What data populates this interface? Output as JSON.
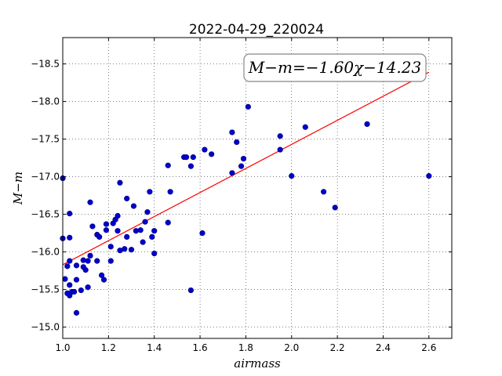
{
  "chart_data": {
    "type": "scatter",
    "title": "2022-04-29_220024",
    "xlabel": "airmass",
    "ylabel": "M−m",
    "xlim": [
      1.0,
      2.7
    ],
    "ylim": [
      -18.85,
      -14.85
    ],
    "y_inverted": true,
    "grid": true,
    "x_ticks": [
      1.0,
      1.2,
      1.4,
      1.6,
      1.8,
      2.0,
      2.2,
      2.4,
      2.6
    ],
    "x_tick_labels": [
      "1.0",
      "1.2",
      "1.4",
      "1.6",
      "1.8",
      "2.0",
      "2.2",
      "2.4",
      "2.6"
    ],
    "y_ticks": [
      -15.0,
      -15.5,
      -16.0,
      -16.5,
      -17.0,
      -17.5,
      -18.0,
      -18.5
    ],
    "y_tick_labels": [
      "−15.0",
      "−15.5",
      "−16.0",
      "−16.5",
      "−17.0",
      "−17.5",
      "−18.0",
      "−18.5"
    ],
    "annotation": "M−m=−1.60χ−14.23",
    "annotation_position": "top-right",
    "point_color": "#0000cc",
    "fit_color": "#ff0000",
    "fit": {
      "slope": -1.6,
      "intercept": -14.23,
      "x": [
        1.0,
        2.6
      ]
    },
    "points": [
      {
        "x": 1.0,
        "y": -16.18
      },
      {
        "x": 1.0,
        "y": -16.98
      },
      {
        "x": 1.01,
        "y": -15.64
      },
      {
        "x": 1.02,
        "y": -15.45
      },
      {
        "x": 1.02,
        "y": -15.81
      },
      {
        "x": 1.03,
        "y": -15.42
      },
      {
        "x": 1.03,
        "y": -15.56
      },
      {
        "x": 1.03,
        "y": -15.88
      },
      {
        "x": 1.03,
        "y": -16.19
      },
      {
        "x": 1.03,
        "y": -16.51
      },
      {
        "x": 1.04,
        "y": -15.47
      },
      {
        "x": 1.05,
        "y": -15.47
      },
      {
        "x": 1.06,
        "y": -15.19
      },
      {
        "x": 1.06,
        "y": -15.63
      },
      {
        "x": 1.06,
        "y": -15.82
      },
      {
        "x": 1.08,
        "y": -15.49
      },
      {
        "x": 1.09,
        "y": -15.8
      },
      {
        "x": 1.09,
        "y": -15.89
      },
      {
        "x": 1.1,
        "y": -15.76
      },
      {
        "x": 1.11,
        "y": -15.53
      },
      {
        "x": 1.11,
        "y": -15.88
      },
      {
        "x": 1.12,
        "y": -15.95
      },
      {
        "x": 1.12,
        "y": -16.66
      },
      {
        "x": 1.13,
        "y": -16.34
      },
      {
        "x": 1.15,
        "y": -15.88
      },
      {
        "x": 1.15,
        "y": -16.23
      },
      {
        "x": 1.16,
        "y": -16.2
      },
      {
        "x": 1.17,
        "y": -15.69
      },
      {
        "x": 1.18,
        "y": -15.63
      },
      {
        "x": 1.19,
        "y": -16.29
      },
      {
        "x": 1.19,
        "y": -16.37
      },
      {
        "x": 1.21,
        "y": -15.88
      },
      {
        "x": 1.21,
        "y": -16.07
      },
      {
        "x": 1.22,
        "y": -16.38
      },
      {
        "x": 1.23,
        "y": -16.43
      },
      {
        "x": 1.24,
        "y": -16.28
      },
      {
        "x": 1.24,
        "y": -16.48
      },
      {
        "x": 1.25,
        "y": -16.02
      },
      {
        "x": 1.25,
        "y": -16.92
      },
      {
        "x": 1.27,
        "y": -16.04
      },
      {
        "x": 1.28,
        "y": -16.71
      },
      {
        "x": 1.28,
        "y": -16.2
      },
      {
        "x": 1.3,
        "y": -16.03
      },
      {
        "x": 1.31,
        "y": -16.61
      },
      {
        "x": 1.32,
        "y": -16.28
      },
      {
        "x": 1.34,
        "y": -16.29
      },
      {
        "x": 1.35,
        "y": -16.13
      },
      {
        "x": 1.36,
        "y": -16.4
      },
      {
        "x": 1.37,
        "y": -16.53
      },
      {
        "x": 1.38,
        "y": -16.8
      },
      {
        "x": 1.39,
        "y": -16.2
      },
      {
        "x": 1.4,
        "y": -16.28
      },
      {
        "x": 1.4,
        "y": -15.98
      },
      {
        "x": 1.46,
        "y": -16.39
      },
      {
        "x": 1.46,
        "y": -17.15
      },
      {
        "x": 1.47,
        "y": -16.8
      },
      {
        "x": 1.53,
        "y": -17.26
      },
      {
        "x": 1.54,
        "y": -17.26
      },
      {
        "x": 1.56,
        "y": -15.49
      },
      {
        "x": 1.56,
        "y": -17.14
      },
      {
        "x": 1.57,
        "y": -17.26
      },
      {
        "x": 1.61,
        "y": -16.25
      },
      {
        "x": 1.62,
        "y": -17.36
      },
      {
        "x": 1.65,
        "y": -17.3
      },
      {
        "x": 1.74,
        "y": -17.05
      },
      {
        "x": 1.74,
        "y": -17.59
      },
      {
        "x": 1.76,
        "y": -17.46
      },
      {
        "x": 1.78,
        "y": -17.14
      },
      {
        "x": 1.79,
        "y": -17.24
      },
      {
        "x": 1.81,
        "y": -17.93
      },
      {
        "x": 1.95,
        "y": -17.54
      },
      {
        "x": 1.95,
        "y": -17.36
      },
      {
        "x": 1.96,
        "y": -18.42
      },
      {
        "x": 2.0,
        "y": -17.01
      },
      {
        "x": 2.06,
        "y": -17.66
      },
      {
        "x": 2.14,
        "y": -16.8
      },
      {
        "x": 2.19,
        "y": -16.59
      },
      {
        "x": 2.33,
        "y": -17.7
      },
      {
        "x": 2.6,
        "y": -17.01
      }
    ]
  }
}
